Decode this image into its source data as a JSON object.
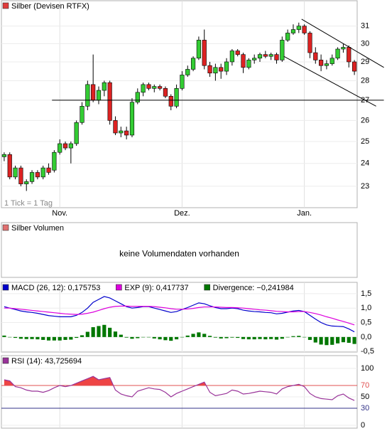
{
  "chart_data": [
    {
      "type": "candlestick",
      "title": "Silber (Devisen RTFX)",
      "note": "1 Tick = 1 Tag",
      "color": "#e03c3c",
      "up_color": "#33cc33",
      "down_color": "#dd2222",
      "log": true,
      "grid": true,
      "categories": [
        null,
        null,
        null,
        null,
        null,
        null,
        null,
        null,
        null,
        null,
        "Nov.",
        null,
        null,
        null,
        null,
        null,
        null,
        null,
        null,
        null,
        null,
        null,
        null,
        null,
        null,
        null,
        null,
        null,
        null,
        null,
        null,
        null,
        "Dez.",
        null,
        null,
        null,
        null,
        null,
        null,
        null,
        null,
        null,
        null,
        null,
        null,
        null,
        null,
        null,
        null,
        null,
        null,
        null,
        null,
        null,
        "Jan.",
        null,
        null,
        null,
        null,
        null,
        null,
        null,
        null,
        null
      ],
      "open": [
        24.3,
        24.4,
        23.4,
        23.8,
        23.1,
        23.2,
        23.6,
        23.4,
        23.8,
        23.7,
        24.5,
        24.9,
        24.7,
        24.9,
        25.9,
        26.7,
        27.8,
        27.0,
        27.5,
        27.9,
        26.0,
        25.4,
        25.5,
        25.3,
        26.9,
        27.4,
        27.8,
        27.6,
        27.7,
        27.6,
        27.2,
        26.7,
        27.6,
        28.3,
        28.6,
        29.2,
        30.2,
        28.8,
        28.4,
        28.7,
        28.5,
        29.0,
        29.6,
        29.4,
        28.7,
        29.1,
        29.2,
        29.4,
        29.3,
        29.4,
        29.1,
        30.2,
        30.6,
        30.8,
        31.0,
        30.6,
        29.5,
        29.1,
        28.8,
        28.9,
        29.2,
        29.7,
        29.8,
        29.0
      ],
      "high": [
        24.5,
        24.5,
        23.9,
        23.9,
        23.3,
        23.7,
        23.7,
        23.9,
        24.0,
        24.6,
        25.1,
        25.0,
        25.0,
        26.0,
        26.9,
        28.0,
        29.4,
        27.7,
        28.0,
        28.0,
        26.2,
        25.7,
        25.7,
        27.1,
        27.6,
        27.9,
        27.9,
        27.8,
        27.8,
        27.7,
        27.3,
        27.8,
        28.5,
        28.8,
        29.3,
        30.4,
        30.8,
        29.0,
        28.9,
        28.9,
        29.2,
        29.7,
        29.7,
        29.5,
        29.2,
        29.4,
        29.5,
        29.6,
        29.5,
        29.5,
        30.4,
        30.8,
        31.1,
        31.2,
        31.1,
        30.7,
        29.8,
        29.4,
        29.1,
        29.4,
        29.8,
        30.0,
        29.9,
        29.1
      ],
      "low": [
        24.1,
        23.3,
        23.3,
        23.0,
        22.8,
        23.1,
        23.3,
        23.3,
        23.5,
        23.6,
        24.4,
        24.6,
        24.0,
        24.8,
        25.8,
        26.5,
        26.9,
        26.8,
        27.2,
        25.8,
        25.3,
        25.2,
        25.1,
        25.2,
        26.8,
        27.2,
        27.5,
        27.4,
        27.5,
        27.1,
        26.5,
        26.6,
        27.5,
        28.2,
        28.5,
        29.1,
        28.6,
        28.2,
        28.0,
        28.1,
        28.3,
        28.8,
        29.3,
        28.4,
        28.6,
        28.9,
        29.0,
        29.2,
        29.1,
        28.9,
        29.0,
        30.1,
        30.5,
        30.6,
        30.5,
        29.2,
        28.9,
        28.5,
        28.6,
        28.8,
        29.1,
        29.5,
        28.7,
        28.3
      ],
      "close": [
        24.4,
        23.4,
        23.8,
        23.1,
        23.2,
        23.6,
        23.4,
        23.8,
        23.6,
        24.5,
        24.9,
        24.7,
        24.9,
        25.9,
        26.7,
        27.8,
        27.0,
        27.5,
        27.9,
        26.0,
        25.4,
        25.5,
        25.3,
        26.9,
        27.4,
        27.8,
        27.6,
        27.7,
        27.6,
        27.2,
        26.7,
        27.6,
        28.3,
        28.6,
        29.2,
        30.2,
        28.8,
        28.4,
        28.7,
        28.5,
        29.0,
        29.6,
        29.4,
        28.7,
        29.1,
        29.2,
        29.4,
        29.3,
        29.4,
        29.1,
        30.2,
        30.6,
        30.8,
        31.0,
        30.6,
        29.5,
        29.1,
        28.8,
        28.9,
        29.2,
        29.7,
        29.8,
        29.0,
        28.5
      ],
      "ylim": [
        22.1,
        32.5
      ],
      "yticks": [
        23,
        24,
        25,
        26,
        27,
        28,
        29,
        30,
        31
      ],
      "lines": [
        {
          "x": [
            8.6,
            68.3
          ],
          "values": [
            27,
            27
          ]
        },
        {
          "x": [
            53.5,
            68.3
          ],
          "values": [
            31.4,
            28.7
          ]
        },
        {
          "x": [
            50.3,
            66.9
          ],
          "values": [
            29.3,
            26.7
          ]
        }
      ]
    },
    {
      "type": "empty",
      "title": "Silber Volumen",
      "color": "#e07070",
      "message": "keine Volumendaten vorhanden"
    },
    {
      "type": "line",
      "grid": true,
      "ylim": [
        -0.52,
        1.89
      ],
      "yticks": [
        {
          "value": 1.5,
          "label": "1,5"
        },
        {
          "value": 1,
          "label": "1,0"
        },
        {
          "value": 0.5,
          "label": "0,5"
        },
        {
          "value": 0,
          "label": "0,0"
        },
        {
          "value": -0.5,
          "label": "-0,5"
        }
      ],
      "series": [
        {
          "name": "MACD (26, 12): 0,175753",
          "color": "#0000cc",
          "values": [
            1.05,
            1.0,
            0.95,
            0.9,
            0.87,
            0.85,
            0.82,
            0.78,
            0.74,
            0.72,
            0.7,
            0.7,
            0.7,
            0.75,
            0.85,
            1.0,
            1.2,
            1.3,
            1.4,
            1.35,
            1.25,
            1.15,
            1.05,
            1.0,
            1.02,
            1.05,
            1.05,
            1.0,
            0.95,
            0.9,
            0.85,
            0.88,
            0.95,
            1.02,
            1.1,
            1.18,
            1.15,
            1.08,
            1.02,
            0.98,
            0.98,
            1.0,
            0.98,
            0.93,
            0.9,
            0.88,
            0.87,
            0.85,
            0.84,
            0.8,
            0.82,
            0.86,
            0.9,
            0.92,
            0.88,
            0.75,
            0.62,
            0.5,
            0.42,
            0.38,
            0.37,
            0.36,
            0.28,
            0.18
          ]
        },
        {
          "name": "EXP (9): 0,417737",
          "color": "#dd00dd",
          "values": [
            1.0,
            1.0,
            0.98,
            0.96,
            0.94,
            0.92,
            0.9,
            0.88,
            0.86,
            0.84,
            0.82,
            0.8,
            0.79,
            0.78,
            0.79,
            0.82,
            0.86,
            0.92,
            0.98,
            1.03,
            1.06,
            1.07,
            1.07,
            1.06,
            1.06,
            1.06,
            1.06,
            1.05,
            1.03,
            1.01,
            0.98,
            0.96,
            0.96,
            0.97,
            0.99,
            1.02,
            1.04,
            1.04,
            1.04,
            1.03,
            1.02,
            1.02,
            1.01,
            1.0,
            0.98,
            0.96,
            0.94,
            0.93,
            0.91,
            0.89,
            0.88,
            0.87,
            0.87,
            0.88,
            0.88,
            0.85,
            0.81,
            0.76,
            0.7,
            0.65,
            0.59,
            0.54,
            0.48,
            0.42
          ]
        },
        {
          "name": "Divergence: −0,241984",
          "color": "#007700",
          "kind": "bar",
          "values": [
            0.05,
            0,
            -0.03,
            -0.06,
            -0.07,
            -0.07,
            -0.08,
            -0.1,
            -0.12,
            -0.12,
            -0.12,
            -0.1,
            -0.09,
            -0.03,
            0.06,
            0.18,
            0.34,
            0.38,
            0.42,
            0.32,
            0.19,
            0.08,
            -0.02,
            -0.06,
            -0.04,
            -0.01,
            -0.01,
            -0.05,
            -0.08,
            -0.11,
            -0.13,
            -0.08,
            -0.01,
            0.05,
            0.11,
            0.16,
            0.11,
            0.04,
            -0.02,
            -0.05,
            -0.04,
            -0.02,
            -0.03,
            -0.07,
            -0.08,
            -0.08,
            -0.07,
            -0.08,
            -0.07,
            -0.09,
            -0.06,
            -0.01,
            0.03,
            0.04,
            0,
            -0.1,
            -0.19,
            -0.26,
            -0.28,
            -0.27,
            -0.22,
            -0.18,
            -0.2,
            -0.24
          ]
        }
      ]
    },
    {
      "type": "line",
      "grid": true,
      "ylim": [
        -5,
        122.5
      ],
      "yticks": [
        100,
        70,
        50,
        30,
        0
      ],
      "levels": [
        {
          "value": 70,
          "color": "#e05050",
          "fill": "#ee4444"
        },
        {
          "value": 30,
          "color": "#333388"
        }
      ],
      "series": [
        {
          "name": "RSI (14): 43,725694",
          "color": "#993399",
          "values": [
            80,
            78,
            68,
            66,
            62,
            60,
            60,
            58,
            61,
            66,
            70,
            68,
            70,
            74,
            78,
            82,
            86,
            80,
            82,
            84,
            62,
            55,
            52,
            50,
            60,
            63,
            66,
            64,
            63,
            58,
            50,
            56,
            60,
            64,
            68,
            72,
            76,
            58,
            52,
            54,
            56,
            62,
            60,
            55,
            56,
            58,
            60,
            59,
            58,
            55,
            64,
            68,
            70,
            72,
            68,
            56,
            50,
            47,
            46,
            45,
            52,
            55,
            48,
            43.7
          ]
        }
      ]
    }
  ]
}
